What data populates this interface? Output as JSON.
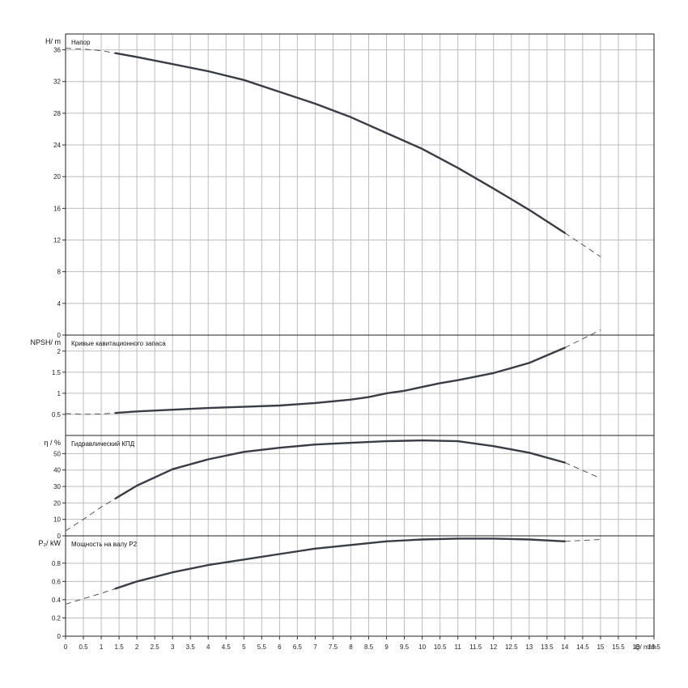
{
  "x_axis": {
    "label": "Q/ m³/h",
    "min": 0,
    "max": 16.5,
    "step": 0.5
  },
  "panels": [
    {
      "id": "head",
      "ylabel": "H/ m",
      "title": "Напор",
      "ylim": [
        0,
        38
      ],
      "yticks": [
        0,
        4,
        8,
        12,
        16,
        20,
        24,
        28,
        32,
        36
      ]
    },
    {
      "id": "npsh",
      "ylabel": "NPSH/ m",
      "title": "Кривые кавитационного запаса",
      "ylim": [
        0,
        2.38
      ],
      "yticks": [
        0.5,
        1,
        1.5,
        2
      ]
    },
    {
      "id": "eff",
      "ylabel": "η / %",
      "title": "Гидравлический КПД",
      "ylim": [
        0,
        61
      ],
      "yticks": [
        0,
        10,
        20,
        30,
        40,
        50
      ]
    },
    {
      "id": "power",
      "ylabel": "P₂/ kW",
      "title": "Мощность на валу P2",
      "ylim": [
        0,
        1.1
      ],
      "yticks": [
        0,
        0.2,
        0.4,
        0.6,
        0.8
      ]
    }
  ],
  "chart_data": [
    {
      "type": "line",
      "panel": "head",
      "title": "Напор",
      "xlabel": "Q/ m³/h",
      "ylabel": "H/ m",
      "xlim": [
        0,
        16.5
      ],
      "ylim": [
        0,
        38
      ],
      "series": [
        {
          "x": [
            0,
            0.5,
            1,
            2,
            3,
            4,
            5,
            6,
            7,
            8,
            9,
            10,
            11,
            12,
            13,
            14,
            15
          ],
          "y": [
            36.2,
            36.1,
            35.9,
            35.1,
            34.2,
            33.3,
            32.2,
            30.7,
            29.2,
            27.5,
            25.5,
            23.5,
            21.1,
            18.5,
            15.8,
            12.9,
            9.9
          ],
          "solid_range": [
            1.4,
            14
          ],
          "dashed_outside": true
        }
      ]
    },
    {
      "type": "line",
      "panel": "npsh",
      "title": "Кривые кавитационного запаса",
      "xlabel": "Q/ m³/h",
      "ylabel": "NPSH/ m",
      "xlim": [
        0,
        16.5
      ],
      "ylim": [
        0,
        2.38
      ],
      "series": [
        {
          "x": [
            0,
            0.5,
            1,
            2,
            3,
            4,
            5,
            6,
            7,
            8,
            8.5,
            9,
            9.5,
            10,
            10.5,
            11,
            12,
            13,
            14,
            15
          ],
          "y": [
            0.52,
            0.5,
            0.51,
            0.57,
            0.61,
            0.65,
            0.68,
            0.71,
            0.77,
            0.85,
            0.91,
            1.0,
            1.06,
            1.15,
            1.24,
            1.31,
            1.48,
            1.72,
            2.08,
            2.5
          ],
          "solid_range": [
            1.4,
            14
          ],
          "dashed_outside": true
        }
      ]
    },
    {
      "type": "line",
      "panel": "eff",
      "title": "Гидравлический КПД",
      "xlabel": "Q/ m³/h",
      "ylabel": "η / %",
      "xlim": [
        0,
        16.5
      ],
      "ylim": [
        0,
        61
      ],
      "series": [
        {
          "x": [
            0,
            0.5,
            1,
            1.5,
            2,
            3,
            4,
            5,
            6,
            7,
            8,
            9,
            10,
            11,
            12,
            13,
            14,
            15
          ],
          "y": [
            3,
            10,
            17.5,
            24,
            30.5,
            40.5,
            46.5,
            51,
            53.5,
            55.5,
            56.5,
            57.5,
            58,
            57.5,
            54.5,
            50.5,
            44.5,
            35
          ],
          "solid_range": [
            1.4,
            14
          ],
          "dashed_outside": true
        }
      ]
    },
    {
      "type": "line",
      "panel": "power",
      "title": "Мощность на валу P2",
      "xlabel": "Q/ m³/h",
      "ylabel": "P₂/ kW",
      "xlim": [
        0,
        16.5
      ],
      "ylim": [
        0,
        1.1
      ],
      "series": [
        {
          "x": [
            0,
            1,
            2,
            3,
            4,
            5,
            6,
            7,
            8,
            9,
            10,
            11,
            12,
            13,
            14,
            15
          ],
          "y": [
            0.35,
            0.47,
            0.6,
            0.7,
            0.78,
            0.84,
            0.9,
            0.96,
            1.0,
            1.04,
            1.06,
            1.07,
            1.07,
            1.06,
            1.04,
            1.06
          ],
          "solid_range": [
            1.4,
            14
          ],
          "dashed_outside": true
        }
      ]
    }
  ]
}
